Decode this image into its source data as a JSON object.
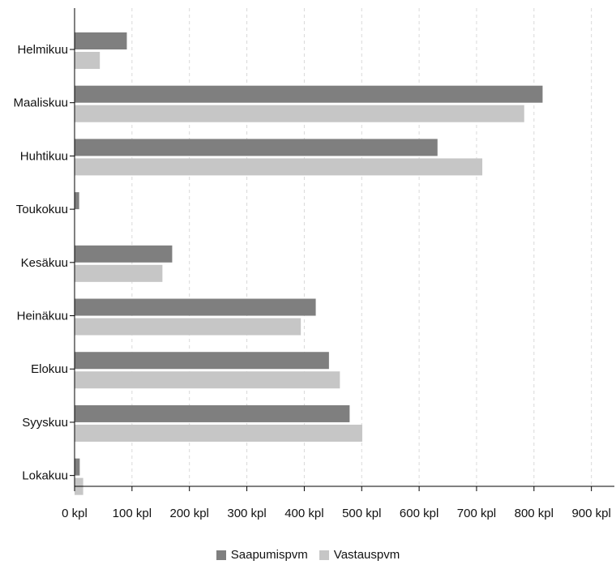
{
  "chart_data": {
    "type": "bar",
    "orientation": "horizontal",
    "categories": [
      "Helmikuu",
      "Maaliskuu",
      "Huhtikuu",
      "Toukokuu",
      "Kesäkuu",
      "Heinäkuu",
      "Elokuu",
      "Syyskuu",
      "Lokakuu"
    ],
    "series": [
      {
        "name": "Saapumispvm",
        "color": "#7f7f7f",
        "values": [
          91,
          815,
          632,
          8,
          170,
          420,
          443,
          479,
          9
        ]
      },
      {
        "name": "Vastauspvm",
        "color": "#c6c6c6",
        "values": [
          44,
          783,
          710,
          0,
          153,
          394,
          462,
          501,
          15
        ]
      }
    ],
    "x_ticks": [
      "0 kpl",
      "100 kpl",
      "200 kpl",
      "300 kpl",
      "400 kpl",
      "500 kpl",
      "600 kpl",
      "700 kpl",
      "800 kpl",
      "900 kpl"
    ],
    "xlim": [
      0,
      940
    ],
    "grid": true,
    "legend_position": "bottom"
  }
}
